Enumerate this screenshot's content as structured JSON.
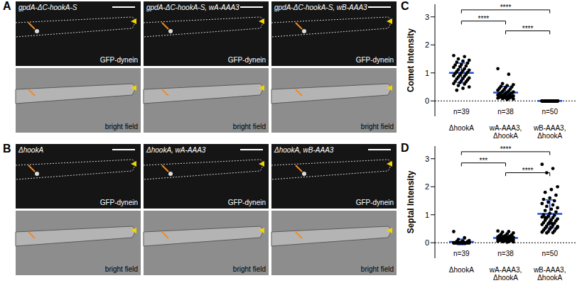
{
  "image_panels": [
    {
      "panel": "A",
      "images": [
        {
          "label": "gpdA-ΔC-hookA-S",
          "channels": [
            "GFP-dynein",
            "bright field"
          ]
        },
        {
          "label": "gpdA-ΔC-hookA-S, wA-AAA3",
          "channels": [
            "GFP-dynein",
            "bright field"
          ]
        },
        {
          "label": "gpdA-ΔC-hookA-S, wB-AAA3",
          "channels": [
            "GFP-dynein",
            "bright field"
          ]
        }
      ]
    },
    {
      "panel": "B",
      "images": [
        {
          "label": "ΔhookA",
          "channels": [
            "GFP-dynein",
            "bright field"
          ]
        },
        {
          "label": "ΔhookA, wA-AAA3",
          "channels": [
            "GFP-dynein",
            "bright field"
          ]
        },
        {
          "label": "ΔhookA, wB-AAA3",
          "channels": [
            "GFP-dynein",
            "bright field"
          ]
        }
      ]
    }
  ],
  "chart_data": [
    {
      "panel": "C",
      "type": "scatter",
      "y_label": "Comet Intensity",
      "categories": [
        "ΔhookA",
        "wA-AAA3, ΔhookA",
        "wB-AAA3, ΔhookA"
      ],
      "color": "#000000",
      "ylim": [
        -0.55,
        3.45
      ],
      "yticks": [
        0,
        1,
        2,
        3
      ],
      "groups": [
        {
          "n_label": "n=39",
          "mean": 1.0,
          "sd": 0.35,
          "values": [
            1.62,
            1.58,
            1.5,
            1.45,
            1.42,
            1.38,
            1.35,
            1.3,
            1.28,
            1.25,
            1.22,
            1.2,
            1.15,
            1.12,
            1.1,
            1.08,
            1.05,
            1.02,
            1.0,
            0.98,
            0.95,
            0.92,
            0.9,
            0.88,
            0.85,
            0.82,
            0.8,
            0.78,
            0.75,
            0.72,
            0.7,
            0.68,
            0.65,
            0.62,
            0.6,
            0.55,
            0.5,
            0.45,
            0.38
          ]
        },
        {
          "n_label": "n=38",
          "mean": 0.3,
          "sd": 0.22,
          "values": [
            1.15,
            0.95,
            0.62,
            0.58,
            0.55,
            0.52,
            0.5,
            0.48,
            0.45,
            0.42,
            0.4,
            0.38,
            0.36,
            0.34,
            0.32,
            0.3,
            0.29,
            0.28,
            0.26,
            0.25,
            0.24,
            0.22,
            0.21,
            0.2,
            0.19,
            0.18,
            0.17,
            0.16,
            0.15,
            0.14,
            0.13,
            0.12,
            0.11,
            0.1,
            0.09,
            0.08,
            0.07,
            0.05
          ]
        },
        {
          "n_label": "n=50",
          "mean": 0,
          "sd": 0,
          "values": [
            0,
            0,
            0,
            0,
            0,
            0,
            0,
            0,
            0,
            0,
            0,
            0,
            0,
            0,
            0,
            0,
            0,
            0,
            0,
            0,
            0,
            0,
            0,
            0,
            0,
            0,
            0,
            0,
            0,
            0,
            0,
            0,
            0,
            0,
            0,
            0,
            0,
            0,
            0,
            0,
            0,
            0,
            0,
            0,
            0,
            0,
            0,
            0,
            0,
            0
          ]
        }
      ],
      "comparisons": [
        {
          "from": 0,
          "to": 2,
          "y": 3.25,
          "label": "****"
        },
        {
          "from": 0,
          "to": 1,
          "y": 2.85,
          "label": "****"
        },
        {
          "from": 1,
          "to": 2,
          "y": 2.5,
          "label": "****"
        }
      ]
    },
    {
      "panel": "D",
      "type": "scatter",
      "y_label": "Septal Intensity",
      "categories": [
        "ΔhookA",
        "wA-AAA3, ΔhookA",
        "wB-AAA3, ΔhookA"
      ],
      "color": "#000000",
      "ylim": [
        -0.55,
        3.45
      ],
      "yticks": [
        0,
        1,
        2,
        3
      ],
      "groups": [
        {
          "n_label": "n=39",
          "mean": 0.03,
          "sd": 0.1,
          "values": [
            0.4,
            0.18,
            0.12,
            0.08,
            0.06,
            0.05,
            0.04,
            0.03,
            0,
            0,
            0,
            0,
            0,
            0,
            0,
            0,
            0,
            0,
            0,
            0,
            0,
            0,
            0,
            0,
            0,
            0,
            0,
            0,
            0,
            0,
            0,
            0,
            0,
            0,
            0,
            0,
            0,
            0,
            0
          ]
        },
        {
          "n_label": "n=38",
          "mean": 0.17,
          "sd": 0.1,
          "values": [
            0.42,
            0.4,
            0.38,
            0.35,
            0.32,
            0.3,
            0.28,
            0.26,
            0.25,
            0.24,
            0.22,
            0.21,
            0.2,
            0.2,
            0.19,
            0.18,
            0.18,
            0.17,
            0.16,
            0.15,
            0.15,
            0.14,
            0.13,
            0.12,
            0.12,
            0.11,
            0.1,
            0.1,
            0.09,
            0.08,
            0.08,
            0.07,
            0.06,
            0.05,
            0.05,
            0.04,
            0.03,
            0.02
          ]
        },
        {
          "n_label": "n=50",
          "mean": 1.03,
          "sd": 0.5,
          "values": [
            2.8,
            2.65,
            2.5,
            2.0,
            1.9,
            1.8,
            1.7,
            1.6,
            1.55,
            1.5,
            1.45,
            1.4,
            1.35,
            1.3,
            1.25,
            1.2,
            1.15,
            1.1,
            1.05,
            1.0,
            0.98,
            0.95,
            0.92,
            0.9,
            0.88,
            0.85,
            0.82,
            0.8,
            0.78,
            0.75,
            0.72,
            0.7,
            0.68,
            0.65,
            0.62,
            0.6,
            0.58,
            0.55,
            0.52,
            0.5,
            0.48,
            0.45,
            0.42,
            0.4,
            0.38,
            0.36,
            0.35,
            0.55,
            0.7,
            0.9
          ]
        }
      ],
      "comparisons": [
        {
          "from": 0,
          "to": 2,
          "y": 3.25,
          "label": "****"
        },
        {
          "from": 0,
          "to": 1,
          "y": 2.85,
          "label": "***"
        },
        {
          "from": 1,
          "to": 2,
          "y": 2.5,
          "label": "****"
        }
      ]
    }
  ]
}
